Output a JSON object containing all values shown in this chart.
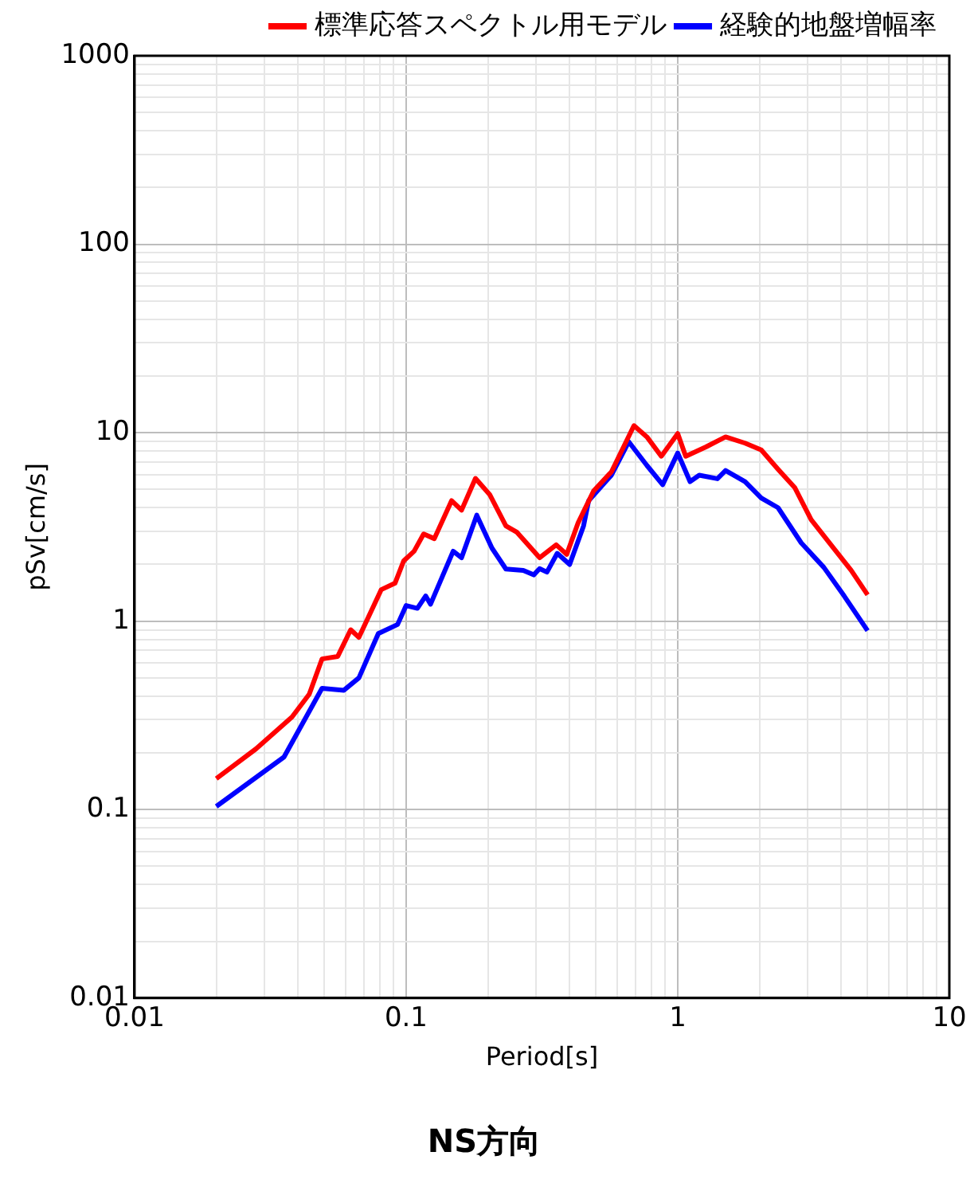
{
  "chart_data": {
    "type": "line",
    "title": "NS方向",
    "xlabel": "Period[s]",
    "ylabel": "pSv[cm/s]",
    "log": "xy",
    "grid": true,
    "legend": "top right",
    "marker": "none",
    "line_style": "solid",
    "xlim": [
      0.01,
      10
    ],
    "ylim": [
      0.01,
      1000
    ],
    "xticks": [
      0.01,
      {
        "value": 0.02,
        "label": null
      },
      {
        "value": 0.03,
        "label": null
      },
      {
        "value": 0.04,
        "label": null
      },
      {
        "value": 0.05,
        "label": null
      },
      {
        "value": 0.06,
        "label": null
      },
      {
        "value": 0.07,
        "label": null
      },
      {
        "value": 0.08,
        "label": null
      },
      {
        "value": 0.09,
        "label": null
      },
      0.1,
      {
        "value": 0.2,
        "label": null
      },
      {
        "value": 0.3,
        "label": null
      },
      {
        "value": 0.4,
        "label": null
      },
      {
        "value": 0.5,
        "label": null
      },
      {
        "value": 0.6,
        "label": null
      },
      {
        "value": 0.7,
        "label": null
      },
      {
        "value": 0.8,
        "label": null
      },
      {
        "value": 0.9,
        "label": null
      },
      1,
      {
        "value": 2,
        "label": null
      },
      {
        "value": 3,
        "label": null
      },
      {
        "value": 4,
        "label": null
      },
      {
        "value": 5,
        "label": null
      },
      {
        "value": 6,
        "label": null
      },
      {
        "value": 7,
        "label": null
      },
      {
        "value": 8,
        "label": null
      },
      {
        "value": 9,
        "label": null
      },
      10
    ],
    "yticks": [
      0.01,
      {
        "value": 0.02,
        "label": null
      },
      {
        "value": 0.03,
        "label": null
      },
      {
        "value": 0.04,
        "label": null
      },
      {
        "value": 0.05,
        "label": null
      },
      {
        "value": 0.06,
        "label": null
      },
      {
        "value": 0.07,
        "label": null
      },
      {
        "value": 0.08,
        "label": null
      },
      {
        "value": 0.09,
        "label": null
      },
      0.1,
      {
        "value": 0.2,
        "label": null
      },
      {
        "value": 0.3,
        "label": null
      },
      {
        "value": 0.4,
        "label": null
      },
      {
        "value": 0.5,
        "label": null
      },
      {
        "value": 0.6,
        "label": null
      },
      {
        "value": 0.7,
        "label": null
      },
      {
        "value": 0.8,
        "label": null
      },
      {
        "value": 0.9,
        "label": null
      },
      1,
      {
        "value": 2,
        "label": null
      },
      {
        "value": 3,
        "label": null
      },
      {
        "value": 4,
        "label": null
      },
      {
        "value": 5,
        "label": null
      },
      {
        "value": 6,
        "label": null
      },
      {
        "value": 7,
        "label": null
      },
      {
        "value": 8,
        "label": null
      },
      {
        "value": 9,
        "label": null
      },
      10,
      {
        "value": 20,
        "label": null
      },
      {
        "value": 30,
        "label": null
      },
      {
        "value": 40,
        "label": null
      },
      {
        "value": 50,
        "label": null
      },
      {
        "value": 60,
        "label": null
      },
      {
        "value": 70,
        "label": null
      },
      {
        "value": 80,
        "label": null
      },
      {
        "value": 90,
        "label": null
      },
      100,
      {
        "value": 200,
        "label": null
      },
      {
        "value": 300,
        "label": null
      },
      {
        "value": 400,
        "label": null
      },
      {
        "value": 500,
        "label": null
      },
      {
        "value": 600,
        "label": null
      },
      {
        "value": 700,
        "label": null
      },
      {
        "value": 800,
        "label": null
      },
      {
        "value": 900,
        "label": null
      },
      1000
    ],
    "series": [
      {
        "name": "標準応答スペクトル用モデル",
        "color": "#ff0000",
        "x": [
          0.02,
          0.028,
          0.038,
          0.044,
          0.049,
          0.056,
          0.0625,
          0.067,
          0.081,
          0.091,
          0.098,
          0.107,
          0.116,
          0.127,
          0.147,
          0.16,
          0.18,
          0.203,
          0.233,
          0.256,
          0.31,
          0.357,
          0.39,
          0.43,
          0.49,
          0.57,
          0.69,
          0.77,
          0.87,
          1.0,
          1.07,
          1.27,
          1.5,
          1.77,
          2.03,
          2.34,
          2.7,
          3.1,
          3.75,
          4.35,
          5.0
        ],
        "values": [
          0.146,
          0.21,
          0.31,
          0.41,
          0.63,
          0.65,
          0.9,
          0.82,
          1.47,
          1.59,
          2.09,
          2.35,
          2.9,
          2.74,
          4.36,
          3.88,
          5.72,
          4.7,
          3.2,
          2.96,
          2.17,
          2.54,
          2.26,
          3.33,
          4.9,
          6.2,
          10.9,
          9.5,
          7.5,
          9.9,
          7.5,
          8.4,
          9.5,
          8.8,
          8.1,
          6.4,
          5.1,
          3.45,
          2.44,
          1.86,
          1.38
        ]
      },
      {
        "name": "経験的地盤増幅率",
        "color": "#0000ff",
        "x": [
          0.02,
          0.0355,
          0.049,
          0.059,
          0.067,
          0.079,
          0.093,
          0.1,
          0.11,
          0.118,
          0.123,
          0.149,
          0.16,
          0.182,
          0.207,
          0.233,
          0.27,
          0.295,
          0.31,
          0.33,
          0.36,
          0.4,
          0.45,
          0.47,
          0.57,
          0.66,
          0.77,
          0.88,
          1.0,
          1.11,
          1.2,
          1.4,
          1.5,
          1.77,
          2.03,
          2.34,
          2.85,
          3.45,
          4.1,
          5.0
        ],
        "values": [
          0.104,
          0.19,
          0.44,
          0.43,
          0.5,
          0.86,
          0.96,
          1.21,
          1.17,
          1.36,
          1.23,
          2.35,
          2.17,
          3.65,
          2.44,
          1.89,
          1.86,
          1.76,
          1.9,
          1.82,
          2.29,
          2.0,
          3.2,
          4.36,
          5.95,
          8.95,
          6.7,
          5.3,
          7.8,
          5.5,
          5.95,
          5.7,
          6.3,
          5.5,
          4.5,
          4.0,
          2.6,
          1.93,
          1.36,
          0.89
        ]
      }
    ]
  }
}
